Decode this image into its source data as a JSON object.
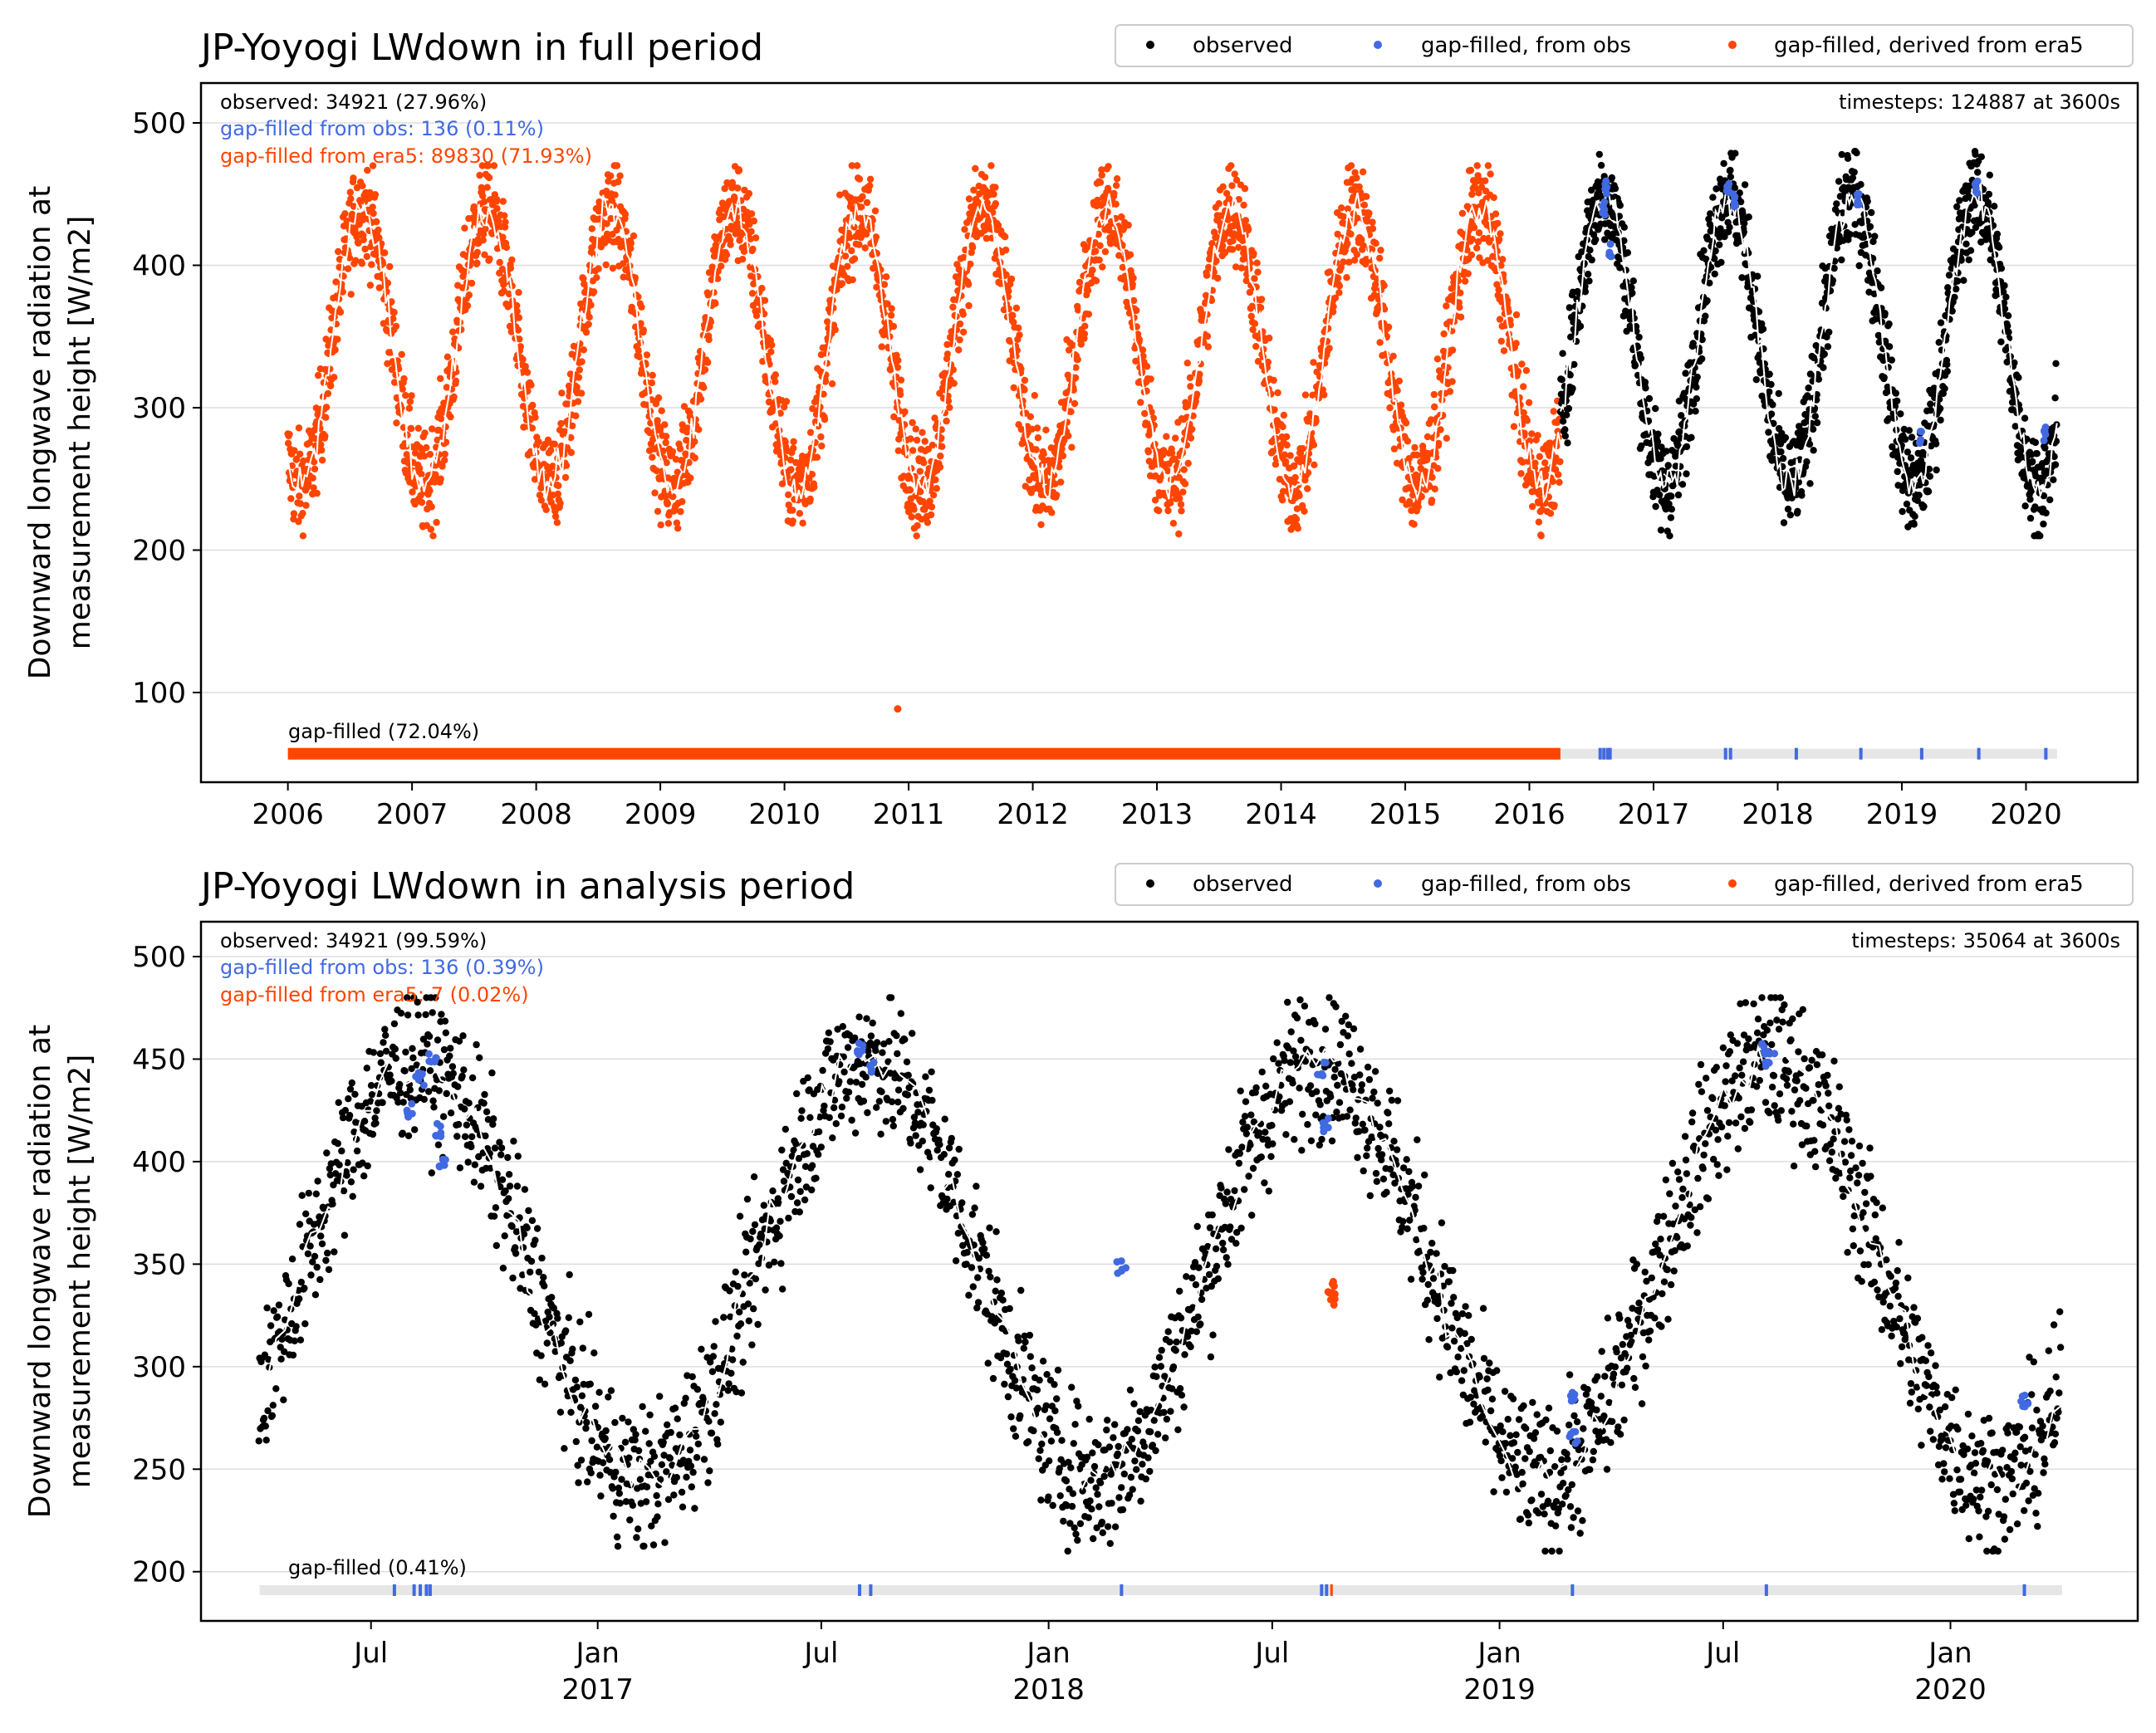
{
  "colors": {
    "observed": "#000000",
    "gap_obs": "#4169e1",
    "gap_era5": "#ff4500",
    "mean_line": "#ffffff",
    "gap_bar_bg": "#e6e6e6"
  },
  "chart_data": [
    {
      "type": "scatter",
      "title": "JP-Yoyogi LWdown in full period",
      "xlabel": "",
      "ylabel_line1": "Downward longwave radiation at",
      "ylabel_line2": "measurement height [W/m2]",
      "x_range": [
        2005.3,
        2020.9
      ],
      "ylim": [
        37,
        528
      ],
      "yticks": [
        100,
        200,
        300,
        400,
        500
      ],
      "xticks": [
        2006,
        2007,
        2008,
        2009,
        2010,
        2011,
        2012,
        2013,
        2014,
        2015,
        2016,
        2017,
        2018,
        2019,
        2020
      ],
      "xtick_labels": [
        "2006",
        "2007",
        "2008",
        "2009",
        "2010",
        "2011",
        "2012",
        "2013",
        "2014",
        "2015",
        "2016",
        "2017",
        "2018",
        "2019",
        "2020"
      ],
      "grid": "horizontal",
      "legend": {
        "placement": "top-right",
        "entries": [
          "observed",
          "gap-filled, from obs",
          "gap-filled, derived from era5"
        ]
      },
      "annotations": {
        "observed": "observed: 34921 (27.96%)",
        "gap_obs": "gap-filled from obs: 136 (0.11%)",
        "gap_era5": "gap-filled from era5: 89830 (71.93%)",
        "timesteps": "timesteps: 124887 at 3600s",
        "gap_bar_label": "gap-filled (72.04%)"
      },
      "series": [
        {
          "name": "gap-filled, derived from era5",
          "x_start": 2006.0,
          "x_end": 2016.25,
          "seasonal_min": 215,
          "seasonal_max": 470,
          "peak": "early Aug"
        },
        {
          "name": "observed",
          "x_start": 2016.25,
          "x_end": 2020.25,
          "seasonal_min": 215,
          "seasonal_max": 480,
          "peak": "early Aug"
        },
        {
          "name": "gap-filled, from obs",
          "points": [
            [
              2016.6,
              440
            ],
            [
              2016.62,
              455
            ],
            [
              2016.65,
              410
            ],
            [
              2017.6,
              455
            ],
            [
              2017.65,
              445
            ],
            [
              2018.65,
              445
            ],
            [
              2019.15,
              280
            ],
            [
              2019.6,
              455
            ],
            [
              2020.15,
              282
            ]
          ]
        },
        {
          "name": "outlier era5",
          "points": [
            [
              2010.92,
              86
            ]
          ]
        }
      ],
      "gap_bar_y": 57,
      "gap_era5_span": [
        2006.0,
        2016.25
      ],
      "gap_obs_ticks": [
        2016.57,
        2016.6,
        2016.63,
        2016.65,
        2017.58,
        2017.62,
        2018.15,
        2018.67,
        2019.16,
        2019.62,
        2020.16
      ]
    },
    {
      "type": "scatter",
      "title": "JP-Yoyogi LWdown in analysis period",
      "xlabel": "",
      "ylabel_line1": "Downward longwave radiation at",
      "ylabel_line2": "measurement height [W/m2]",
      "x_range": [
        "2016-02-14",
        "2020-06-01"
      ],
      "ylim": [
        176,
        517
      ],
      "yticks": [
        200,
        250,
        300,
        350,
        400,
        450,
        500
      ],
      "xticks": [
        "2016-07-01",
        "2017-01-01",
        "2017-07-01",
        "2018-01-01",
        "2018-07-01",
        "2019-01-01",
        "2019-07-01",
        "2020-01-01"
      ],
      "xtick_labels": [
        [
          "Jul",
          ""
        ],
        [
          "Jan",
          "2017"
        ],
        [
          "Jul",
          ""
        ],
        [
          "Jan",
          "2018"
        ],
        [
          "Jul",
          ""
        ],
        [
          "Jan",
          "2019"
        ],
        [
          "Jul",
          ""
        ],
        [
          "Jan",
          "2020"
        ]
      ],
      "grid": "horizontal",
      "legend": {
        "placement": "top-right",
        "entries": [
          "observed",
          "gap-filled, from obs",
          "gap-filled, derived from era5"
        ]
      },
      "annotations": {
        "observed": "observed: 34921 (99.59%)",
        "gap_obs": "gap-filled from obs: 136 (0.39%)",
        "gap_era5": "gap-filled from era5: 7 (0.02%)",
        "timesteps": "timesteps: 35064 at 3600s",
        "gap_bar_label": "gap-filled (0.41%)"
      },
      "series": [
        {
          "name": "observed",
          "x_start": "2016-04-01",
          "x_end": "2020-03-31",
          "seasonal_min": 215,
          "seasonal_max": 480,
          "peak": "early Aug"
        },
        {
          "name": "gap-filled, from obs",
          "points": [
            [
              "2016-08-01",
              425
            ],
            [
              "2016-08-10",
              440
            ],
            [
              "2016-08-20",
              450
            ],
            [
              "2016-08-25",
              415
            ],
            [
              "2016-08-28",
              400
            ],
            [
              "2017-08-01",
              455
            ],
            [
              "2017-08-10",
              445
            ],
            [
              "2018-03-01",
              348
            ],
            [
              "2018-08-10",
              445
            ],
            [
              "2018-08-14",
              418
            ],
            [
              "2019-03-01",
              285
            ],
            [
              "2019-03-02",
              265
            ],
            [
              "2019-08-05",
              455
            ],
            [
              "2019-08-08",
              450
            ],
            [
              "2020-03-01",
              283
            ]
          ]
        },
        {
          "name": "gap-filled, derived from era5",
          "points": [
            [
              "2018-08-18",
              338
            ],
            [
              "2018-08-18",
              333
            ]
          ]
        }
      ],
      "gap_bar_y": 191,
      "gap_obs_ticks": [
        "2016-07-20",
        "2016-08-05",
        "2016-08-10",
        "2016-08-15",
        "2016-08-18",
        "2017-08-01",
        "2017-08-10",
        "2018-03-01",
        "2018-08-10",
        "2018-08-14",
        "2019-03-01",
        "2019-08-05",
        "2020-03-01"
      ],
      "gap_era5_ticks": [
        "2018-08-18"
      ]
    }
  ]
}
